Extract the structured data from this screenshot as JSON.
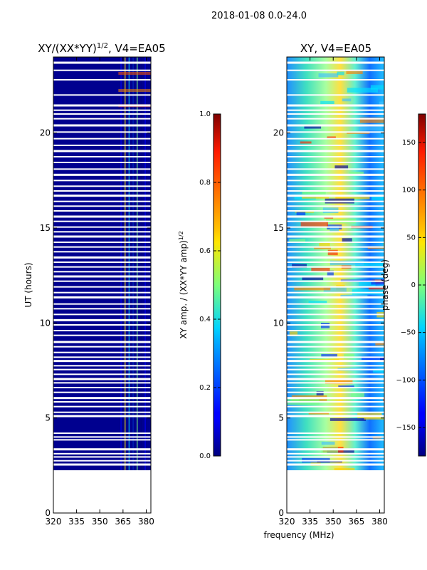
{
  "figure": {
    "suptitle": "2018-01-08 0.0-24.0",
    "xlabel_shared": "frequency (MHz)"
  },
  "chart_data": [
    {
      "type": "heatmap",
      "title": "XY/(XX*YY)^1/2, V4=EA05",
      "title_main": "XY/(XX*YY)",
      "title_exp": "1/2",
      "title_tail": ", V4=EA05",
      "ylabel": "UT (hours)",
      "xlim": [
        320,
        383
      ],
      "ylim": [
        0,
        24
      ],
      "xticks": [
        320,
        335,
        350,
        365,
        380
      ],
      "xtick_labels": [
        "320",
        "335",
        "350",
        "365",
        "380"
      ],
      "yticks": [
        0,
        5,
        10,
        15,
        20
      ],
      "ytick_labels": [
        "0",
        "5",
        "10",
        "15",
        "20"
      ],
      "data_start_hour": 2.25,
      "band_freq": [
        362,
        383
      ],
      "colorbar": {
        "label": "XY amp. / (XX*YY amp)^1/2",
        "label_main": "XY amp. / (XX*YY amp)",
        "label_exp": "1/2",
        "range": [
          0.0,
          1.0
        ],
        "ticks": [
          0.0,
          0.2,
          0.4,
          0.6,
          0.8,
          1.0
        ],
        "tick_labels": [
          "0.0",
          "0.2",
          "0.4",
          "0.6",
          "0.8",
          "1.0"
        ]
      }
    },
    {
      "type": "heatmap",
      "title": "XY, V4=EA05",
      "xlim": [
        320,
        383
      ],
      "ylim": [
        0,
        24
      ],
      "xticks": [
        320,
        335,
        350,
        365,
        380
      ],
      "xtick_labels": [
        "320",
        "335",
        "350",
        "365",
        "380"
      ],
      "yticks": [
        0,
        5,
        10,
        15,
        20
      ],
      "ytick_labels": [
        "0",
        "5",
        "10",
        "15",
        "20"
      ],
      "data_start_hour": 2.25,
      "colorbar": {
        "label": "phase (deg)",
        "range": [
          -180,
          180
        ],
        "ticks": [
          -150,
          -100,
          -50,
          0,
          50,
          100,
          150
        ],
        "tick_labels": [
          "−150",
          "−100",
          "−50",
          "0",
          "50",
          "100",
          "150"
        ]
      }
    }
  ],
  "gap_hours": [
    2.55,
    2.75,
    2.95,
    3.12,
    3.35,
    3.85,
    4.0,
    4.2,
    5.1,
    5.3,
    5.6,
    5.85,
    6.05,
    6.35,
    6.6,
    6.85,
    7.05,
    7.3,
    7.55,
    7.75,
    8.0,
    8.2,
    8.45,
    8.75,
    9.0,
    9.35,
    9.6,
    9.9,
    10.15,
    10.45,
    10.75,
    11.0,
    11.35,
    11.6,
    11.9,
    12.2,
    12.45,
    12.7,
    12.95,
    13.2,
    13.45,
    13.75,
    14.0,
    14.25,
    14.55,
    14.8,
    15.05,
    15.35,
    15.6,
    15.9,
    16.15,
    16.4,
    16.7,
    16.95,
    17.2,
    17.5,
    17.8,
    18.1,
    18.45,
    18.75,
    19.05,
    19.35,
    19.7,
    20.05,
    20.4,
    20.75,
    21.0,
    21.2,
    21.45,
    22.0,
    22.8,
    23.3,
    23.7
  ]
}
